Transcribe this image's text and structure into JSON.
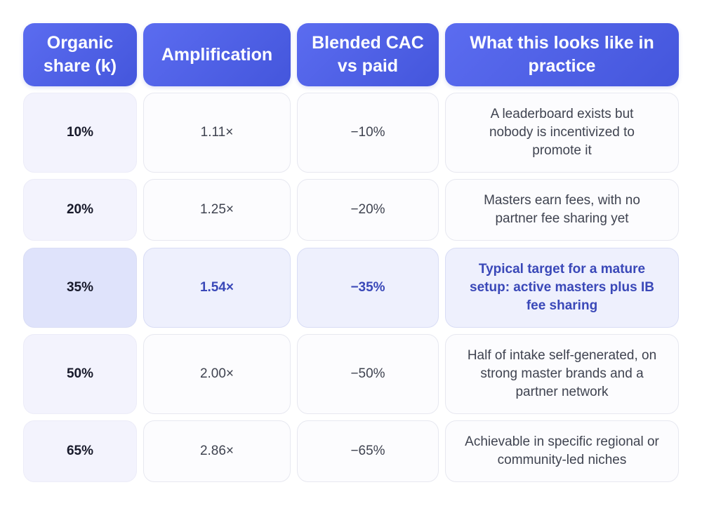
{
  "headers": [
    "Organic share (k)",
    "Amplification",
    "Blended CAC vs paid",
    "What this looks like in practice"
  ],
  "rows": [
    {
      "share": "10%",
      "amplification": "1.11×",
      "cac": "−10%",
      "practice": "A leaderboard exists but nobody is incentivized to promote it",
      "highlight": false
    },
    {
      "share": "20%",
      "amplification": "1.25×",
      "cac": "−20%",
      "practice": "Masters earn fees, with no partner fee sharing yet",
      "highlight": false
    },
    {
      "share": "35%",
      "amplification": "1.54×",
      "cac": "−35%",
      "practice": "Typical target for a mature setup: active masters plus IB fee sharing",
      "highlight": true
    },
    {
      "share": "50%",
      "amplification": "2.00×",
      "cac": "−50%",
      "practice": "Half of intake self-generated, on strong master brands and a partner network",
      "highlight": false
    },
    {
      "share": "65%",
      "amplification": "2.86×",
      "cac": "−65%",
      "practice": "Achievable in specific regional or community-led niches",
      "highlight": false
    }
  ],
  "colors": {
    "header_start": "#5b6cf0",
    "header_end": "#4456dc",
    "highlight_text": "#3a48b8",
    "highlight_bg": "#eef0fd"
  }
}
